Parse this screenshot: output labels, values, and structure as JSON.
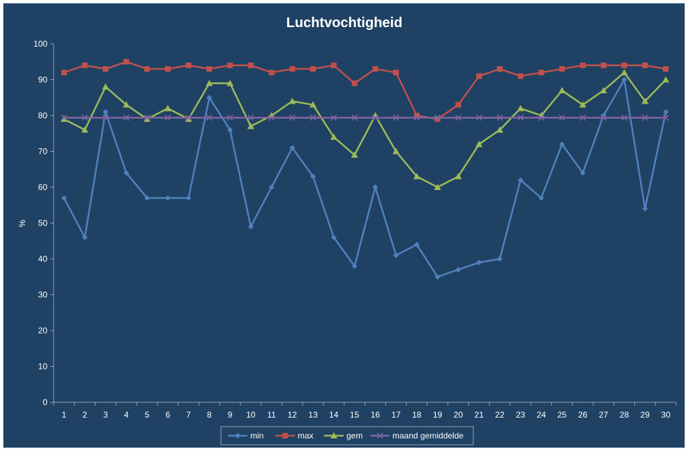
{
  "chart_data": {
    "type": "line",
    "title": "Luchtvochtigheid",
    "xlabel": "",
    "ylabel": "%",
    "ylim": [
      0,
      100
    ],
    "yticks": [
      0,
      10,
      20,
      30,
      40,
      50,
      60,
      70,
      80,
      90,
      100
    ],
    "categories": [
      "1",
      "2",
      "3",
      "4",
      "5",
      "6",
      "7",
      "8",
      "9",
      "10",
      "11",
      "12",
      "13",
      "14",
      "15",
      "16",
      "17",
      "18",
      "19",
      "20",
      "21",
      "22",
      "23",
      "24",
      "25",
      "26",
      "27",
      "28",
      "29",
      "30"
    ],
    "series": [
      {
        "name": "min",
        "color": "#4f81bd",
        "marker": "diamond",
        "values": [
          57,
          46,
          81,
          64,
          57,
          57,
          57,
          85,
          76,
          49,
          60,
          71,
          63,
          46,
          38,
          60,
          41,
          44,
          35,
          37,
          39,
          40,
          62,
          57,
          72,
          64,
          80,
          90,
          54,
          81
        ]
      },
      {
        "name": "max",
        "color": "#c0504d",
        "marker": "square",
        "values": [
          92,
          94,
          93,
          95,
          93,
          93,
          94,
          93,
          94,
          94,
          92,
          93,
          93,
          94,
          89,
          93,
          92,
          80,
          79,
          83,
          91,
          93,
          91,
          92,
          93,
          94,
          94,
          94,
          94,
          93
        ]
      },
      {
        "name": "gem",
        "color": "#9bbb59",
        "marker": "triangle",
        "values": [
          79,
          76,
          88,
          83,
          79,
          82,
          79,
          89,
          89,
          77,
          80,
          84,
          83,
          74,
          69,
          80,
          70,
          63,
          60,
          63,
          72,
          76,
          82,
          80,
          87,
          83,
          87,
          92,
          84,
          90
        ]
      },
      {
        "name": "maand gemiddelde",
        "color": "#8064a2",
        "marker": "x",
        "values": [
          79.4,
          79.4,
          79.4,
          79.4,
          79.4,
          79.4,
          79.4,
          79.4,
          79.4,
          79.4,
          79.4,
          79.4,
          79.4,
          79.4,
          79.4,
          79.4,
          79.4,
          79.4,
          79.4,
          79.4,
          79.4,
          79.4,
          79.4,
          79.4,
          79.4,
          79.4,
          79.4,
          79.4,
          79.4,
          79.4
        ]
      }
    ],
    "grid": false,
    "legend_position": "bottom"
  }
}
